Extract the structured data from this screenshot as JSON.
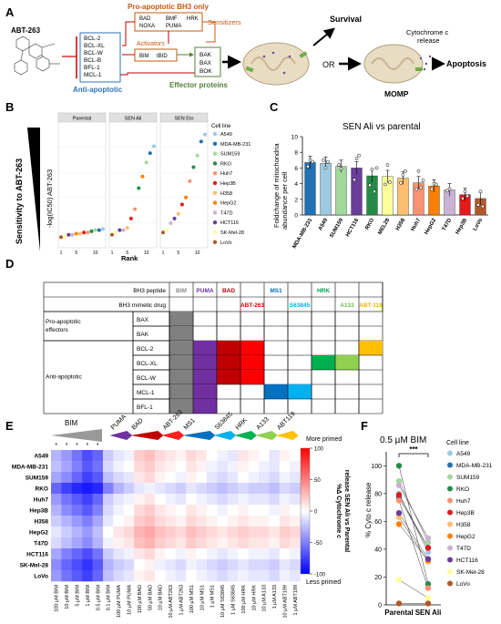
{
  "panels": [
    "A",
    "B",
    "C",
    "D",
    "E",
    "F"
  ],
  "panel_a": {
    "drug": "ABT-263",
    "anti_apoptotic": [
      "BCL-2",
      "BCL-XL",
      "BCL-W",
      "BCL-B",
      "BFL-1",
      "MCL-1"
    ],
    "anti_apoptotic_label": "Anti-apoptotic",
    "bh3_only_title": "Pro-apoptotic BH3 only",
    "sensitizers": [
      "BAD",
      "NOXA",
      "BMF",
      "PUMA",
      "HRK"
    ],
    "sensitizers_label": "Sensitizers",
    "activators_label": "Activators",
    "activators": [
      "BIM",
      "tBID"
    ],
    "effectors": [
      "BAK",
      "BAX",
      "BOK"
    ],
    "effectors_label": "Effector proteins",
    "survival": "Survival",
    "or": "OR",
    "cyto_label": "Cytochrome c release",
    "apoptosis": "Apoptosis",
    "momp": "MOMP"
  },
  "panel_b": {
    "ylabel": "Sensitivity to ABT-263",
    "ylabel2": "-log(IC50) ABT-263",
    "xlabel": "Rank",
    "facets": [
      "Parental",
      "SEN Ali",
      "SEN Eto"
    ],
    "ticks": [
      "1",
      "5",
      "10"
    ],
    "legend_title": "Cell line",
    "cell_lines": [
      {
        "name": "A549",
        "color": "#9ecae1"
      },
      {
        "name": "MDA-MB-231",
        "color": "#2171b5"
      },
      {
        "name": "SUM159",
        "color": "#a1d99b"
      },
      {
        "name": "RKO",
        "color": "#238b45"
      },
      {
        "name": "Huh7",
        "color": "#fc9272"
      },
      {
        "name": "Hep3B",
        "color": "#e31a1c"
      },
      {
        "name": "H358",
        "color": "#fdbf6f"
      },
      {
        "name": "HepG2",
        "color": "#ff7f00"
      },
      {
        "name": "T47D",
        "color": "#cab2d6"
      },
      {
        "name": "HCT116",
        "color": "#6a3d9a"
      },
      {
        "name": "SK-Mel-28",
        "color": "#ffff99"
      },
      {
        "name": "LoVo",
        "color": "#b15928"
      }
    ]
  },
  "chart_data": [
    {
      "type": "bar",
      "title": "SEN Ali vs parental",
      "ylabel": "Foldchange of mitochondria abundance per cell",
      "categories": [
        "MDA-MB-231",
        "A549",
        "SUM159",
        "HCT116",
        "RKO",
        "MEL28",
        "H358",
        "Huh7",
        "HepG2",
        "T47D",
        "Hep3B",
        "LoVo"
      ],
      "values": [
        6.7,
        6.6,
        6.2,
        6.0,
        5.0,
        4.9,
        4.7,
        4.1,
        3.7,
        3.2,
        2.6,
        2.1
      ],
      "colors": [
        "#2171b5",
        "#9ecae1",
        "#a1d99b",
        "#6a3d9a",
        "#238b45",
        "#ffff99",
        "#fdbf6f",
        "#fc9272",
        "#ff7f00",
        "#cab2d6",
        "#e31a1c",
        "#b15928"
      ],
      "ylim": [
        0,
        10
      ],
      "yticks": [
        "0",
        "2",
        "4",
        "6",
        "8",
        "10"
      ]
    },
    {
      "type": "line",
      "title": "0.5 µM BIM",
      "ylabel": "% Cyto c release",
      "categories": [
        "Parental",
        "SEN Ali"
      ],
      "yticks": [
        "0",
        "20",
        "40",
        "60",
        "80",
        "100"
      ],
      "ylim": [
        0,
        110
      ],
      "significance": "***",
      "series": [
        {
          "name": "A549",
          "values": [
            80,
            38
          ]
        },
        {
          "name": "MDA-MB-231",
          "values": [
            77,
            41
          ]
        },
        {
          "name": "SUM159",
          "values": [
            89,
            45
          ]
        },
        {
          "name": "RKO",
          "values": [
            100,
            15
          ]
        },
        {
          "name": "Huh7",
          "values": [
            75,
            12
          ]
        },
        {
          "name": "Hep3B",
          "values": [
            79,
            41
          ]
        },
        {
          "name": "H358",
          "values": [
            63,
            31
          ]
        },
        {
          "name": "HepG2",
          "values": [
            58,
            32
          ]
        },
        {
          "name": "T47D",
          "values": [
            86,
            48
          ]
        },
        {
          "name": "HCT116",
          "values": [
            66,
            33
          ]
        },
        {
          "name": "SK-Mel-28",
          "values": [
            18,
            5
          ]
        },
        {
          "name": "LoVo",
          "values": [
            1,
            1
          ]
        }
      ]
    }
  ],
  "panel_d": {
    "row_header_peptide": "BH3 peptide",
    "row_header_drug": "BH3 mimetic drug",
    "peptides": [
      {
        "label": "BIM",
        "color": "#888888"
      },
      {
        "label": "PUMA",
        "color": "#7030a0"
      },
      {
        "label": "BAD",
        "color": "#c00000"
      },
      {
        "label": "",
        "color": "#c00000"
      },
      {
        "label": "MS1",
        "color": "#0070c0"
      },
      {
        "label": "",
        "color": "#0070c0"
      },
      {
        "label": "HRK",
        "color": "#00a050"
      },
      {
        "label": "",
        "color": "#00a050"
      },
      {
        "label": "",
        "color": "#000000"
      }
    ],
    "drugs": [
      "",
      "",
      "",
      "ABT-263",
      "",
      "S63845",
      "",
      "A133",
      "ABT-119"
    ],
    "drug_colors": [
      "#000",
      "#000",
      "#000",
      "#e00000",
      "#000",
      "#00b0f0",
      "#000",
      "#70c050",
      "#f0b000"
    ],
    "group1": "Pro-apoptotic effectors",
    "group2": "Anti-apoptotic",
    "rows": [
      "BAX",
      "BAK",
      "BCL-2",
      "BCL-XL",
      "BCL-W",
      "MCL-1",
      "BFL-1"
    ],
    "fills": [
      [
        "#808080",
        "",
        "",
        "",
        "",
        "",
        "",
        "",
        ""
      ],
      [
        "#808080",
        "",
        "",
        "",
        "",
        "",
        "",
        "",
        ""
      ],
      [
        "#808080",
        "#7030a0",
        "#c00000",
        "#ff0000",
        "",
        "",
        "",
        "",
        "#ffc000"
      ],
      [
        "#808080",
        "#7030a0",
        "#c00000",
        "#ff0000",
        "",
        "",
        "#00b050",
        "#92d050",
        ""
      ],
      [
        "#808080",
        "#7030a0",
        "#c00000",
        "#ff0000",
        "",
        "",
        "",
        "",
        ""
      ],
      [
        "#808080",
        "#7030a0",
        "",
        "",
        "#0070c0",
        "#00b0f0",
        "",
        "",
        ""
      ],
      [
        "#808080",
        "#7030a0",
        "",
        "",
        "",
        "",
        "",
        "",
        ""
      ]
    ]
  },
  "panel_e": {
    "groups": [
      {
        "label": "BIM",
        "color": "#999999"
      },
      {
        "label": "PUMA",
        "color": "#7030a0"
      },
      {
        "label": "BAD",
        "color": "#c00000"
      },
      {
        "label": "ABT-263",
        "color": "#ff2020"
      },
      {
        "label": "MS1",
        "color": "#0070c0"
      },
      {
        "label": "S63845",
        "color": "#00b0f0"
      },
      {
        "label": "HRK",
        "color": "#00b050"
      },
      {
        "label": "A133",
        "color": "#92d050"
      },
      {
        "label": "ABT119",
        "color": "#ffc000"
      }
    ],
    "rows": [
      "A549",
      "MDA-MB-231",
      "SUM159",
      "RKO",
      "Huh7",
      "Hep3B",
      "H358",
      "HepG2",
      "T47D",
      "HCT116",
      "SK-Mel-28",
      "LoVo"
    ],
    "columns": [
      "100 µM BIM",
      "10 µM BIM",
      "5 µM BIM",
      "1 µM BIM",
      "0.5 µM BIM",
      "0.1 µM BIM",
      "100 µM PUMA",
      "10 µM PUMA",
      "100 µM BAD",
      "50 µM BAD",
      "10 µM BAD",
      "10 µM ABT263",
      "1 µM ABT263",
      "100 µM MS1",
      "10 µM MS1",
      "1 µM MS1",
      "10 µM S63845",
      "1 µM S63845",
      "100 µM HRK",
      "10 µM HRK",
      "10 µM A133",
      "1 µM A133",
      "10 µM ABT199",
      "1 µM ABT199"
    ],
    "values": [
      [
        -30,
        -40,
        -55,
        -70,
        -60,
        -20,
        -10,
        -5,
        20,
        25,
        15,
        10,
        5,
        15,
        10,
        0,
        -5,
        -10,
        10,
        5,
        0,
        -10,
        5,
        0
      ],
      [
        -25,
        -35,
        -50,
        -65,
        -55,
        -15,
        -5,
        0,
        15,
        20,
        10,
        5,
        0,
        10,
        5,
        -5,
        -10,
        -5,
        5,
        0,
        -5,
        -10,
        0,
        -5
      ],
      [
        -35,
        -45,
        -60,
        -75,
        -65,
        -25,
        -15,
        -10,
        10,
        15,
        5,
        0,
        -5,
        5,
        0,
        -10,
        -15,
        -10,
        0,
        -5,
        -10,
        -15,
        -5,
        -10
      ],
      [
        -60,
        -75,
        -85,
        -90,
        -85,
        -50,
        -30,
        -20,
        -10,
        -5,
        -10,
        -15,
        -20,
        -10,
        -15,
        -20,
        -25,
        -20,
        -15,
        -20,
        -20,
        -25,
        -15,
        -20
      ],
      [
        -40,
        -55,
        -65,
        -75,
        -60,
        -20,
        -10,
        -5,
        5,
        10,
        0,
        -5,
        -10,
        0,
        -5,
        -10,
        -15,
        -10,
        -5,
        -10,
        -10,
        -15,
        -5,
        -10
      ],
      [
        -30,
        -45,
        -55,
        -65,
        -50,
        -15,
        -5,
        0,
        15,
        20,
        10,
        5,
        0,
        10,
        5,
        0,
        -5,
        0,
        5,
        0,
        0,
        -5,
        5,
        0
      ],
      [
        -20,
        -30,
        -40,
        -50,
        -35,
        -10,
        0,
        5,
        20,
        25,
        15,
        10,
        5,
        15,
        10,
        5,
        0,
        5,
        10,
        5,
        5,
        0,
        10,
        5
      ],
      [
        -10,
        -20,
        -30,
        -40,
        -25,
        0,
        10,
        15,
        30,
        35,
        25,
        20,
        15,
        25,
        20,
        15,
        10,
        15,
        20,
        15,
        15,
        10,
        20,
        15
      ],
      [
        -15,
        -25,
        -35,
        -45,
        -30,
        -5,
        5,
        10,
        25,
        30,
        20,
        15,
        10,
        20,
        15,
        10,
        5,
        10,
        15,
        10,
        10,
        5,
        15,
        10
      ],
      [
        -35,
        -50,
        -60,
        -70,
        -55,
        -20,
        -10,
        -5,
        10,
        15,
        5,
        0,
        -5,
        5,
        0,
        -5,
        -10,
        -5,
        0,
        -5,
        -5,
        -10,
        0,
        -5
      ],
      [
        -45,
        -60,
        -70,
        -80,
        -65,
        -30,
        -20,
        -15,
        0,
        5,
        -5,
        -10,
        -15,
        -5,
        -10,
        -15,
        -20,
        -15,
        -10,
        -15,
        -15,
        -20,
        -10,
        -15
      ],
      [
        -40,
        -55,
        -65,
        -75,
        -60,
        -25,
        -15,
        -10,
        5,
        10,
        0,
        -5,
        -10,
        0,
        -5,
        -10,
        -15,
        -10,
        -5,
        -10,
        -10,
        -15,
        -5,
        -10
      ]
    ],
    "stars": [
      "*",
      "*",
      "*",
      "*",
      "*"
    ],
    "colorbar_ticks": [
      "100",
      "50",
      "0",
      "-50",
      "-100"
    ],
    "colorbar_top": "More primed",
    "colorbar_bottom": "Less primed",
    "colorbar_label": "%Δ Cytochrome c release SEN Ali vs Parental"
  },
  "panel_f": {
    "legend_title": "Cell line"
  }
}
